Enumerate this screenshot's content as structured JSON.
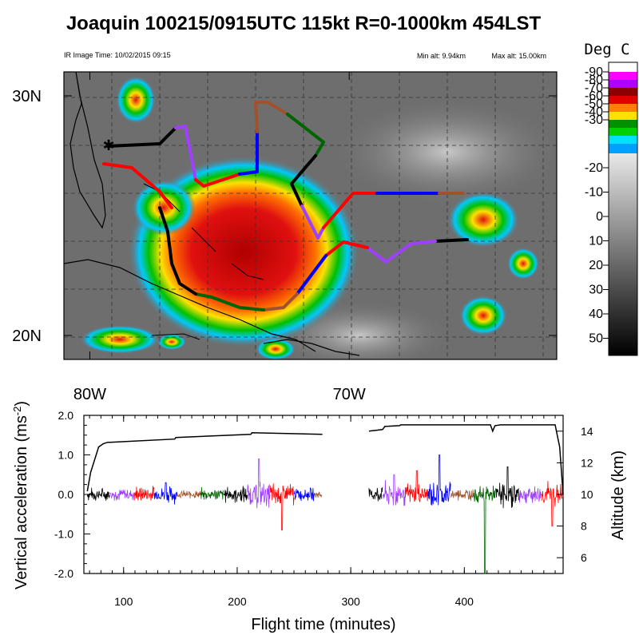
{
  "header": {
    "title": "Joaquin 100215/0915UTC 115kt  R=0-1000km 454LST",
    "ir_time": "IR Image Time: 10/02/2015 09:15",
    "min_alt": "Min alt:  9.94km",
    "max_alt": "Max alt: 15.00km"
  },
  "map": {
    "lat_labels": [
      "30N",
      "20N"
    ],
    "lon_labels": [
      "80W",
      "70W"
    ],
    "lat_values": [
      30,
      20
    ],
    "lon_values": [
      -80,
      -70
    ],
    "extent": {
      "lon": [
        -81,
        -62
      ],
      "lat": [
        19,
        31
      ]
    }
  },
  "colorbar": {
    "title": "Deg C",
    "labels": [
      "-90",
      "-80",
      "-70",
      "-60",
      "-50",
      "-40",
      "-30",
      "-20",
      "-10",
      "0",
      "10",
      "20",
      "30",
      "40",
      "50"
    ],
    "colors": [
      "#ff00ff",
      "#a000ff",
      "#ff0000",
      "#ffe000",
      "#00c000",
      "#00e0ff",
      "#00a0ff"
    ],
    "range": [
      -90,
      50
    ]
  },
  "legend_colors": {
    "black": "#000000",
    "purple": "#a040ff",
    "red": "#ff0000",
    "blue": "#0000ff",
    "brown": "#a0522d",
    "green": "#006400"
  },
  "chart_data": {
    "type": "line",
    "xlabel": "Flight time (minutes)",
    "ylabel": "Vertical acceleration (ms^-2)",
    "y2label": "Altitude (km)",
    "xlim": [
      65,
      487
    ],
    "ylim": [
      -2.0,
      2.0
    ],
    "y2lim": [
      5,
      15
    ],
    "xticks": [
      100,
      200,
      300,
      400
    ],
    "yticks": [
      "2.0",
      "1.0",
      "0.0",
      "-1.0",
      "-2.0"
    ],
    "yticks_values": [
      2.0,
      1.0,
      0.0,
      -1.0,
      -2.0
    ],
    "y2ticks": [
      "14",
      "12",
      "10",
      "8",
      "6"
    ],
    "y2ticks_values": [
      14,
      12,
      10,
      8,
      6
    ],
    "series": [
      {
        "name": "Altitude",
        "axis": "right",
        "x": [
          68,
          71,
          78,
          82,
          86,
          88,
          145,
          146,
          212,
          213,
          275,
          316,
          328,
          330,
          343,
          344,
          423,
          425,
          427,
          432,
          480,
          484,
          487
        ],
        "y": [
          10.2,
          11.4,
          13.0,
          13.2,
          13.3,
          13.3,
          13.5,
          13.6,
          13.8,
          13.9,
          13.8,
          14.0,
          14.1,
          14.3,
          14.35,
          14.4,
          14.4,
          14.0,
          14.35,
          14.4,
          14.4,
          13.0,
          10.0
        ]
      },
      {
        "name": "Vertical acceleration",
        "axis": "left",
        "segments": [
          {
            "color": "black",
            "x": [
              68,
              88
            ],
            "amp": 0.15
          },
          {
            "color": "purple",
            "x": [
              88,
              109
            ],
            "amp": 0.15
          },
          {
            "color": "red",
            "x": [
              109,
              127
            ],
            "amp": 0.2
          },
          {
            "color": "blue",
            "x": [
              127,
              147
            ],
            "amp": 0.2,
            "peak": 0.3
          },
          {
            "color": "brown",
            "x": [
              147,
              168
            ],
            "amp": 0.1
          },
          {
            "color": "green",
            "x": [
              168,
              188
            ],
            "amp": 0.15
          },
          {
            "color": "black",
            "x": [
              188,
              209
            ],
            "amp": 0.2
          },
          {
            "color": "purple",
            "x": [
              209,
              229
            ],
            "amp": 0.3,
            "peak": 0.9
          },
          {
            "color": "red",
            "x": [
              229,
              250
            ],
            "amp": 0.3,
            "peak": -0.9
          },
          {
            "color": "blue",
            "x": [
              250,
              268
            ],
            "amp": 0.15
          },
          {
            "color": "brown",
            "x": [
              268,
              275
            ],
            "amp": 0.1
          },
          {
            "color": "black",
            "x": [
              316,
              328
            ],
            "amp": 0.2
          },
          {
            "color": "purple",
            "x": [
              328,
              348
            ],
            "amp": 0.3,
            "peak": 0.5
          },
          {
            "color": "red",
            "x": [
              348,
              368
            ],
            "amp": 0.25,
            "peak": 0.6
          },
          {
            "color": "blue",
            "x": [
              368,
              388
            ],
            "amp": 0.3,
            "peak": 1.0
          },
          {
            "color": "brown",
            "x": [
              388,
              408
            ],
            "amp": 0.15
          },
          {
            "color": "green",
            "x": [
              408,
              428
            ],
            "amp": 0.2,
            "peak": -2.0
          },
          {
            "color": "black",
            "x": [
              428,
              448
            ],
            "amp": 0.3,
            "peak": 0.7
          },
          {
            "color": "purple",
            "x": [
              448,
              468
            ],
            "amp": 0.2
          },
          {
            "color": "red",
            "x": [
              468,
              487
            ],
            "amp": 0.3,
            "peak": -0.8
          }
        ]
      }
    ]
  }
}
